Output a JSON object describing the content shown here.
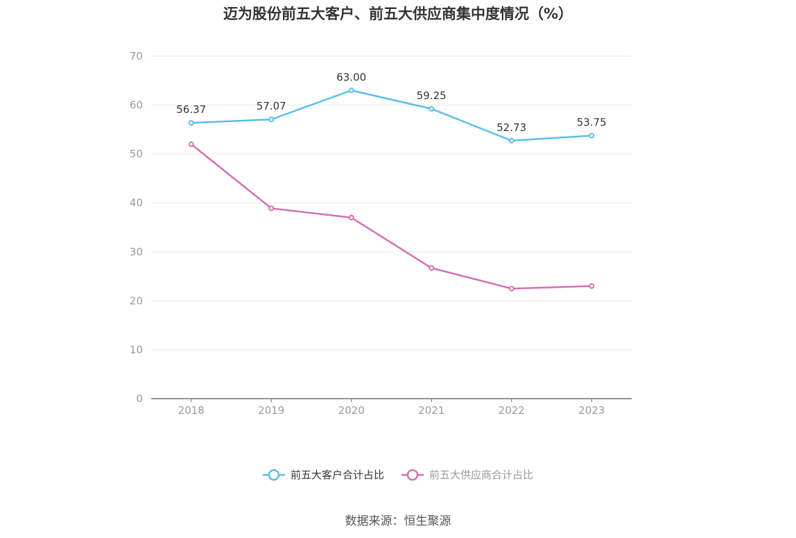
{
  "title": "迈为股份前五大客户、前五大供应商集中度情况（%）",
  "source": "数据来源：恒生聚源",
  "chart_data": {
    "type": "line",
    "categories": [
      "2018",
      "2019",
      "2020",
      "2021",
      "2022",
      "2023"
    ],
    "series": [
      {
        "name": "前五大客户合计占比",
        "values": [
          56.37,
          57.07,
          63.0,
          59.25,
          52.73,
          53.75
        ],
        "color": "#5bbdec",
        "show_labels": true,
        "labels": [
          "56.37",
          "57.07",
          "63.00",
          "59.25",
          "52.73",
          "53.75"
        ]
      },
      {
        "name": "前五大供应商合计占比",
        "values": [
          52.0,
          38.9,
          37.0,
          26.7,
          22.5,
          23.0
        ],
        "color": "#d36fb4",
        "show_labels": false,
        "labels": []
      }
    ],
    "ylim": [
      0,
      70
    ],
    "yticks": [
      "0",
      "10",
      "20",
      "30",
      "40",
      "50",
      "60",
      "70"
    ],
    "grid": true,
    "legend_position": "bottom",
    "xlabel": "",
    "ylabel": ""
  }
}
